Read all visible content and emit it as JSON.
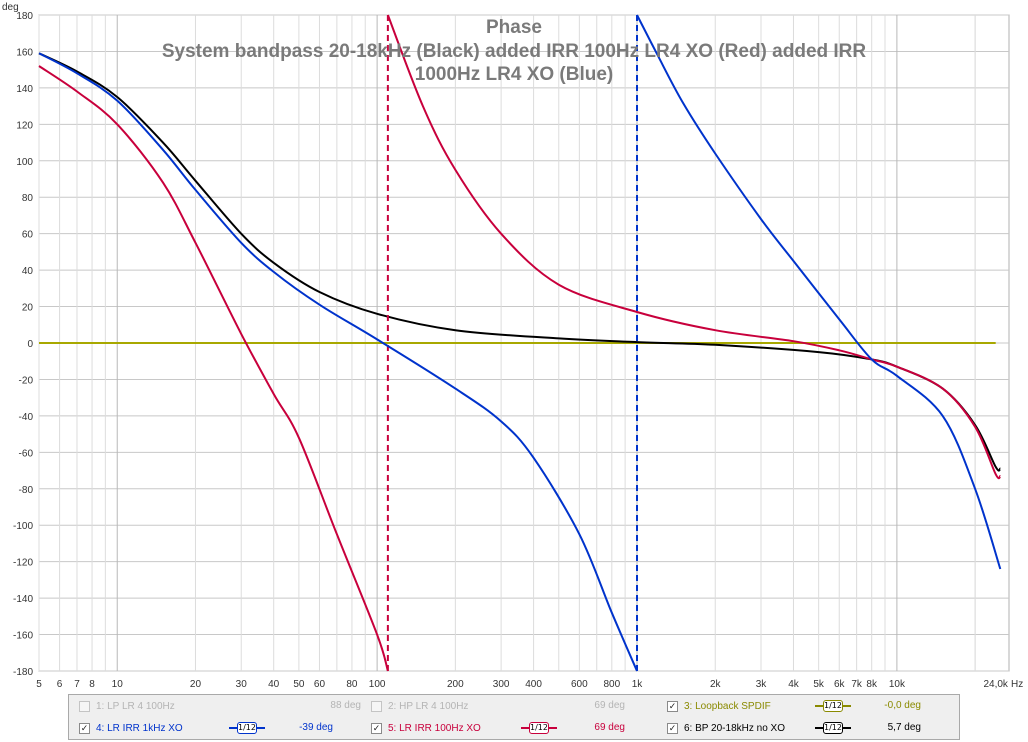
{
  "chart_data": {
    "type": "line",
    "title": "Phase",
    "subtitle_lines": [
      "System bandpass 20-18kHz (Black) added IRR 100Hz LR4 XO (Red) added IRR",
      "1000Hz LR4 XO (Blue)"
    ],
    "ylabel": "deg",
    "xunit": "Hz",
    "xscale": "log",
    "xlim": [
      5,
      27000
    ],
    "ylim": [
      -180,
      180
    ],
    "grid": true,
    "yticks": [
      -180,
      -160,
      -140,
      -120,
      -100,
      -80,
      -60,
      -40,
      -20,
      0,
      20,
      40,
      60,
      80,
      100,
      120,
      140,
      160,
      180
    ],
    "xticks": [
      {
        "v": 5,
        "label": "5"
      },
      {
        "v": 6,
        "label": "6"
      },
      {
        "v": 7,
        "label": "7"
      },
      {
        "v": 8,
        "label": "8"
      },
      {
        "v": 10,
        "label": "10"
      },
      {
        "v": 20,
        "label": "20"
      },
      {
        "v": 30,
        "label": "30"
      },
      {
        "v": 40,
        "label": "40"
      },
      {
        "v": 50,
        "label": "50"
      },
      {
        "v": 60,
        "label": "60"
      },
      {
        "v": 80,
        "label": "80"
      },
      {
        "v": 100,
        "label": "100"
      },
      {
        "v": 200,
        "label": "200"
      },
      {
        "v": 300,
        "label": "300"
      },
      {
        "v": 400,
        "label": "400"
      },
      {
        "v": 600,
        "label": "600"
      },
      {
        "v": 800,
        "label": "800"
      },
      {
        "v": 1000,
        "label": "1k"
      },
      {
        "v": 2000,
        "label": "2k"
      },
      {
        "v": 3000,
        "label": "3k"
      },
      {
        "v": 4000,
        "label": "4k"
      },
      {
        "v": 5000,
        "label": "5k"
      },
      {
        "v": 6000,
        "label": "6k"
      },
      {
        "v": 7000,
        "label": "7k"
      },
      {
        "v": 8000,
        "label": "8k"
      },
      {
        "v": 10000,
        "label": "10k"
      },
      {
        "v": 24000,
        "label": "24,0k"
      }
    ],
    "series": [
      {
        "color": "#a8a800",
        "x": [
          5,
          24000
        ],
        "y": [
          0,
          0
        ]
      },
      {
        "color": "#000000",
        "x": [
          5,
          7,
          10,
          15,
          20,
          30,
          40,
          60,
          100,
          200,
          500,
          1000,
          2000,
          5000,
          8000,
          10000,
          15000,
          20000,
          24000,
          25000
        ],
        "y": [
          159,
          149,
          135,
          110,
          89,
          60,
          44,
          28,
          16,
          7,
          2.5,
          0.5,
          -1,
          -5,
          -9,
          -13,
          -25,
          -45,
          -68,
          -69
        ]
      },
      {
        "color": "#c8003c",
        "x": [
          5,
          7,
          10,
          15,
          20,
          30,
          40,
          50,
          70,
          100,
          110,
          110.001,
          150,
          200,
          300,
          500,
          1000,
          2000,
          4000,
          6000,
          8000,
          10000,
          15000,
          20000,
          24000,
          25000
        ],
        "y": [
          152,
          138,
          120,
          88,
          55,
          5,
          -28,
          -52,
          -105,
          -160,
          -180,
          180,
          130,
          95,
          60,
          32,
          17,
          7,
          1,
          -4,
          -9,
          -13,
          -25,
          -46,
          -72,
          -73
        ],
        "markers_x": [
          110
        ]
      },
      {
        "color": "#0033cc",
        "x": [
          5,
          7,
          10,
          15,
          20,
          30,
          40,
          60,
          100,
          200,
          300,
          400,
          600,
          800,
          1000,
          1000.001,
          1200,
          1500,
          2000,
          3000,
          4000,
          6000,
          8000,
          10000,
          15000,
          20000,
          25000
        ],
        "y": [
          159,
          148,
          133,
          106,
          84,
          55,
          39,
          21,
          2,
          -25,
          -43,
          -63,
          -105,
          -148,
          -180,
          180,
          158,
          132,
          104,
          68,
          45,
          13,
          -9,
          -18,
          -40,
          -80,
          -124
        ],
        "markers_x": [
          1000
        ]
      }
    ]
  },
  "legend": {
    "rows": [
      [
        {
          "checked": false,
          "name": "1: LP LR 4 100Hz",
          "color": "#b4b4b4",
          "value": "88 deg",
          "smoothing": ""
        },
        {
          "checked": false,
          "name": "2: HP LR 4 100Hz",
          "color": "#b4b4b4",
          "value": "69 deg",
          "smoothing": ""
        },
        {
          "checked": true,
          "name": "3: Loopback SPDIF",
          "color": "#8a8a00",
          "value": "-0,0 deg",
          "smoothing": "1/12"
        }
      ],
      [
        {
          "checked": true,
          "name": "4: LR IRR 1kHz XO",
          "color": "#0033cc",
          "value": "-39 deg",
          "smoothing": "1/12"
        },
        {
          "checked": true,
          "name": "5: LR IRR 100Hz XO",
          "color": "#c8003c",
          "value": "69 deg",
          "smoothing": "1/12"
        },
        {
          "checked": true,
          "name": "6: BP 20-18kHz no XO",
          "color": "#000000",
          "value": "5,7 deg",
          "smoothing": "1/12"
        }
      ]
    ]
  }
}
